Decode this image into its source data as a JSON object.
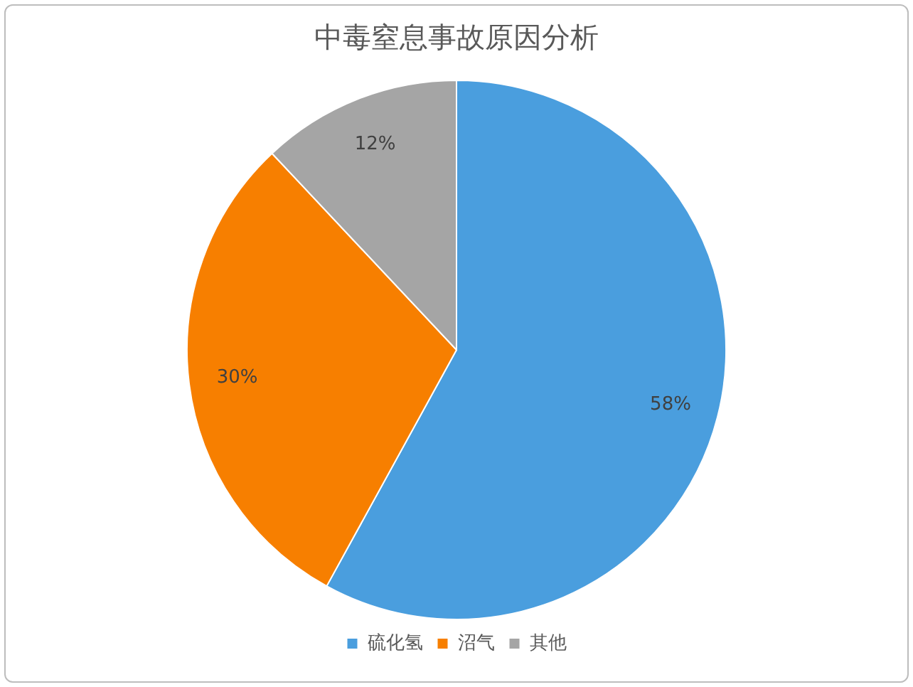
{
  "chart_data": {
    "type": "pie",
    "title": "中毒窒息事故原因分析",
    "categories": [
      "硫化氢",
      "沼气",
      "其他"
    ],
    "values": [
      58,
      30,
      12
    ],
    "colors": [
      "#4a9ede",
      "#f77f00",
      "#a5a5a5"
    ],
    "value_labels": [
      "58%",
      "30%",
      "12%"
    ],
    "legend": "bottom"
  }
}
